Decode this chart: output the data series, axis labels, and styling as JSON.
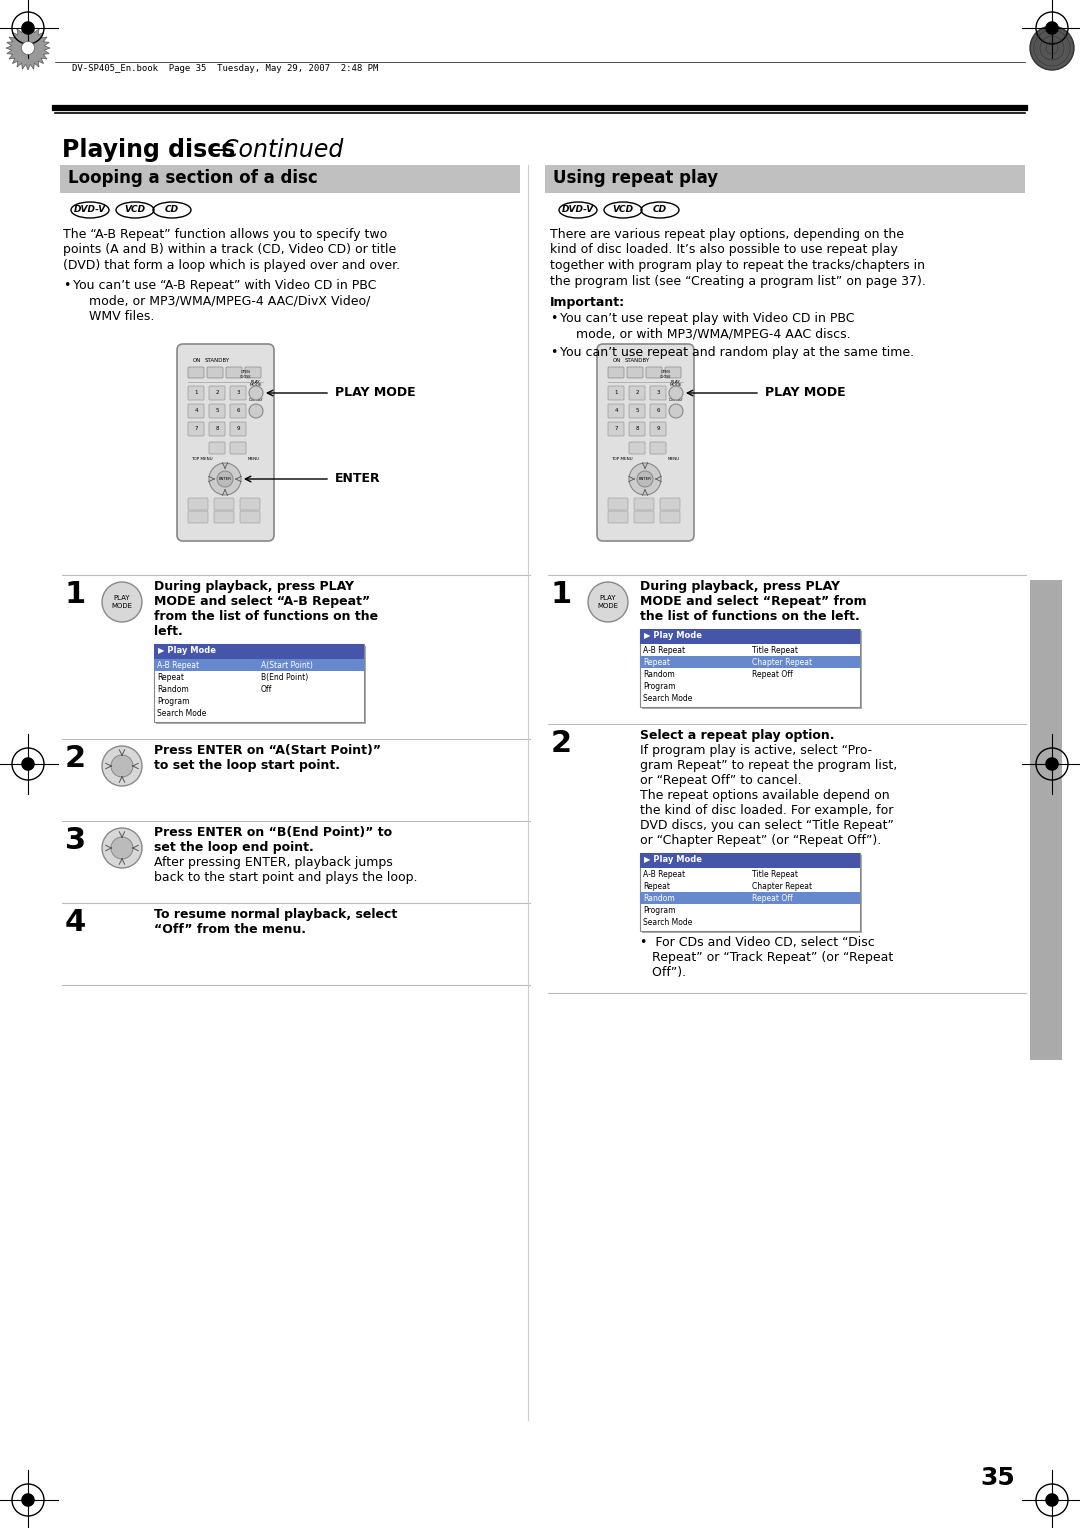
{
  "page_number": "35",
  "header_file": "DV-SP405_En.book  Page 35  Tuesday, May 29, 2007  2:48 PM",
  "bg_color": "#ffffff",
  "left_section_title": "Looping a section of a disc",
  "right_section_title": "Using repeat play",
  "left_intro": "The “A-B Repeat” function allows you to specify two\npoints (A and B) within a track (CD, Video CD) or title\n(DVD) that form a loop which is played over and over.",
  "left_bullet": "You can’t use “A-B Repeat” with Video CD in PBC\n    mode, or MP3/WMA/MPEG-4 AAC/DivX Video/\n    WMV files.",
  "right_intro": "There are various repeat play options, depending on the\nkind of disc loaded. It’s also possible to use repeat play\ntogether with program play to repeat the tracks/chapters in\nthe program list (see “Creating a program list” on page 37).",
  "right_important_label": "Important:",
  "right_bullet1": "You can’t use repeat play with Video CD in PBC\n    mode, or with MP3/WMA/MPEG-4 AAC discs.",
  "right_bullet2": "You can’t use repeat and random play at the same time.",
  "left_steps": [
    {
      "num": "1",
      "icon": "play_mode",
      "bold_text": "During playback, press PLAY\nMODE and select “A-B Repeat”\nfrom the list of functions on the\nleft.",
      "has_menu": true,
      "menu_title": "Play Mode",
      "menu_items": [
        [
          "A-B Repeat",
          "A(Start Point)"
        ],
        [
          "Repeat",
          "B(End Point)"
        ],
        [
          "Random",
          "Off"
        ],
        [
          "Program",
          ""
        ],
        [
          "Search Mode",
          ""
        ]
      ],
      "highlight_row": 0
    },
    {
      "num": "2",
      "icon": "enter",
      "bold_text": "Press ENTER on “A(Start Point)”\nto set the loop start point.",
      "has_menu": false
    },
    {
      "num": "3",
      "icon": "enter",
      "bold_text": "Press ENTER on “B(End Point)” to\nset the loop end point.",
      "normal_text": "After pressing ENTER, playback jumps\nback to the start point and plays the loop.",
      "has_menu": false
    },
    {
      "num": "4",
      "icon": "none",
      "bold_text": "To resume normal playback, select\n“Off” from the menu.",
      "has_menu": false
    }
  ],
  "right_steps": [
    {
      "num": "1",
      "icon": "play_mode",
      "bold_text": "During playback, press PLAY\nMODE and select “Repeat” from\nthe list of functions on the left.",
      "has_menu": true,
      "menu_title": "Play Mode",
      "menu_items": [
        [
          "A-B Repeat",
          "Title Repeat"
        ],
        [
          "Repeat",
          "Chapter Repeat"
        ],
        [
          "Random",
          "Repeat Off"
        ],
        [
          "Program",
          ""
        ],
        [
          "Search Mode",
          ""
        ]
      ],
      "highlight_row": 1
    },
    {
      "num": "2",
      "icon": "none",
      "bold_text": "Select a repeat play option.",
      "normal_text": "If program play is active, select “Pro-\ngram Repeat” to repeat the program list,\nor “Repeat Off” to cancel.\nThe repeat options available depend on\nthe kind of disc loaded. For example, for\nDVD discs, you can select “Title Repeat”\nor “Chapter Repeat” (or “Repeat Off”).",
      "has_menu": true,
      "menu_title": "Play Mode",
      "menu_items": [
        [
          "A-B Repeat",
          "Title Repeat"
        ],
        [
          "Repeat",
          "Chapter Repeat"
        ],
        [
          "Random",
          "Repeat Off"
        ],
        [
          "Program",
          ""
        ],
        [
          "Search Mode",
          ""
        ]
      ],
      "highlight_row": 2,
      "footer_text": "•  For CDs and Video CD, select “Disc\n   Repeat” or “Track Repeat” (or “Repeat\n   Off”)."
    }
  ]
}
